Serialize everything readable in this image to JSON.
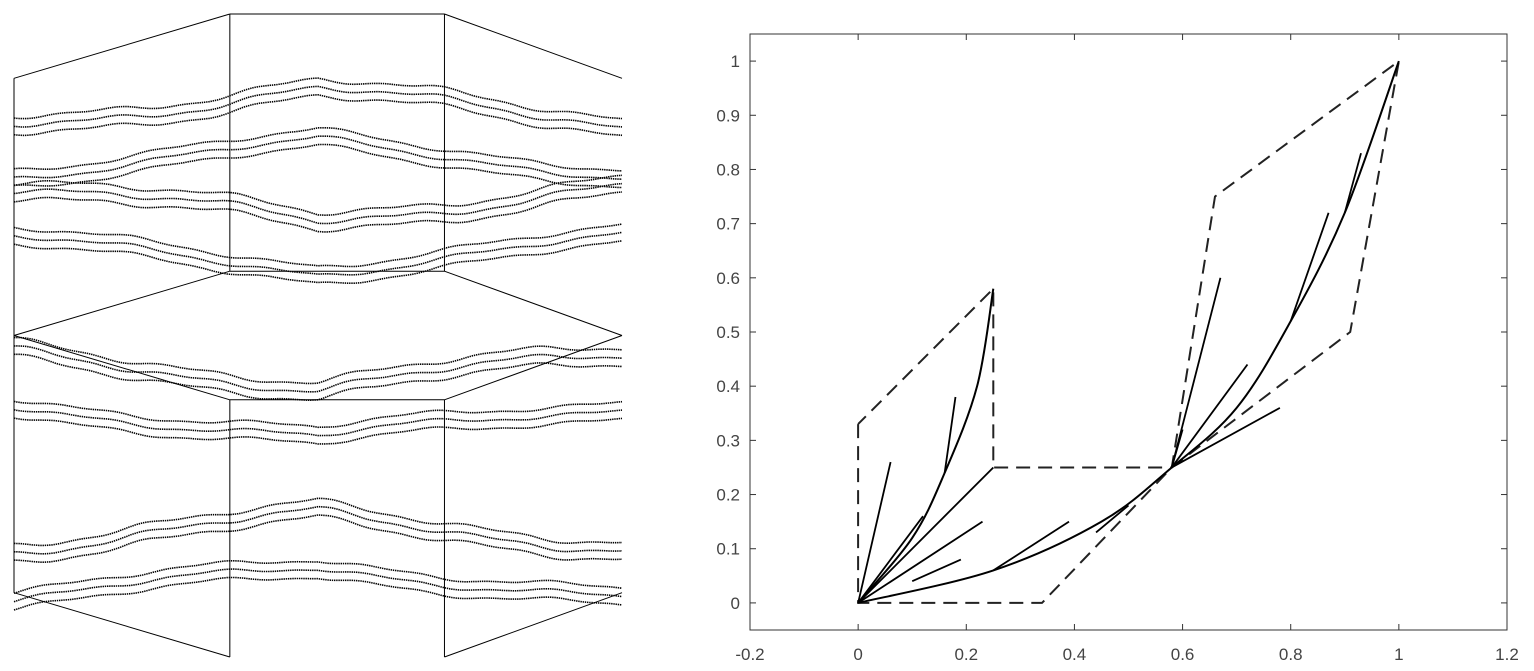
{
  "chart_data": [
    {
      "type": "other",
      "title": "",
      "grid": false,
      "colors": {
        "stroke": "#000000"
      },
      "hexagon_rows": [
        {
          "border": [
            [
              0,
              0.1
            ],
            [
              0.35,
              0
            ],
            [
              0.7,
              0.1
            ],
            [
              1,
              0.1
            ],
            [
              1,
              0.4
            ],
            [
              0,
              0.4
            ]
          ]
        },
        {
          "border": [
            [
              0,
              0.5
            ],
            [
              0.35,
              0.6
            ],
            [
              0.7,
              0.5
            ],
            [
              1,
              0.5
            ],
            [
              1,
              0.9
            ],
            [
              0,
              0.9
            ]
          ]
        }
      ],
      "curve_bands": [
        {
          "base": 0.12,
          "amp": 0.05,
          "sign": 1
        },
        {
          "base": 0.2,
          "amp": 0.04,
          "sign": 1
        },
        {
          "base": 0.32,
          "amp": 0.05,
          "sign": -1
        },
        {
          "base": 0.4,
          "amp": 0.04,
          "sign": -1
        },
        {
          "base": 0.58,
          "amp": 0.05,
          "sign": -1
        },
        {
          "base": 0.66,
          "amp": 0.04,
          "sign": -1
        },
        {
          "base": 0.78,
          "amp": 0.05,
          "sign": 1
        },
        {
          "base": 0.86,
          "amp": 0.04,
          "sign": 1
        }
      ]
    },
    {
      "type": "line",
      "title": "",
      "xlabel": "",
      "ylabel": "",
      "grid": false,
      "xlim": [
        -0.2,
        1.2
      ],
      "ylim": [
        -0.05,
        1.05
      ],
      "xticks": [
        -0.2,
        0,
        0.2,
        0.4,
        0.6,
        0.8,
        1,
        1.2
      ],
      "xtick_labels": [
        "-0.2",
        "0",
        "0.2",
        "0.4",
        "0.6",
        "0.8",
        "1",
        "1.2"
      ],
      "yticks": [
        0,
        0.1,
        0.2,
        0.3,
        0.4,
        0.5,
        0.6,
        0.7,
        0.8,
        0.9,
        1
      ],
      "ytick_labels": [
        "0",
        "0.1",
        "0.2",
        "0.3",
        "0.4",
        "0.5",
        "0.6",
        "0.7",
        "0.8",
        "0.9",
        "1"
      ],
      "dashed_outline": [
        [
          0,
          0.33
        ],
        [
          0,
          0
        ],
        [
          0.34,
          0
        ],
        [
          0.58,
          0.25
        ],
        [
          0.91,
          0.5
        ],
        [
          1,
          1
        ],
        [
          0.66,
          0.75
        ],
        [
          0.58,
          0.25
        ],
        [
          0.25,
          0.25
        ],
        [
          0.25,
          0.58
        ],
        [
          0,
          0.33
        ]
      ],
      "solid_main_curve": [
        [
          0,
          0
        ],
        [
          0.25,
          0.06
        ],
        [
          0.45,
          0.15
        ],
        [
          0.58,
          0.25
        ],
        [
          0.7,
          0.36
        ],
        [
          0.8,
          0.52
        ],
        [
          0.9,
          0.72
        ],
        [
          1,
          1
        ]
      ],
      "solid_branch_curve": [
        [
          0,
          0
        ],
        [
          0.1,
          0.12
        ],
        [
          0.16,
          0.24
        ],
        [
          0.22,
          0.4
        ],
        [
          0.25,
          0.58
        ]
      ],
      "solid_segments": [
        [
          [
            0,
            0
          ],
          [
            0.25,
            0.25
          ]
        ],
        [
          [
            0,
            0
          ],
          [
            0.06,
            0.26
          ]
        ],
        [
          [
            0,
            0
          ],
          [
            0.12,
            0.16
          ]
        ],
        [
          [
            0,
            0
          ],
          [
            0.23,
            0.15
          ]
        ],
        [
          [
            0.1,
            0.04
          ],
          [
            0.19,
            0.08
          ]
        ],
        [
          [
            0.25,
            0.06
          ],
          [
            0.39,
            0.15
          ]
        ],
        [
          [
            0.44,
            0.13
          ],
          [
            0.5,
            0.18
          ]
        ],
        [
          [
            0.16,
            0.24
          ],
          [
            0.18,
            0.38
          ]
        ],
        [
          [
            0.58,
            0.25
          ],
          [
            0.6,
            0.32
          ]
        ],
        [
          [
            0.58,
            0.25
          ],
          [
            0.67,
            0.6
          ]
        ],
        [
          [
            0.58,
            0.25
          ],
          [
            0.72,
            0.44
          ]
        ],
        [
          [
            0.58,
            0.25
          ],
          [
            0.78,
            0.36
          ]
        ],
        [
          [
            0.8,
            0.52
          ],
          [
            0.87,
            0.72
          ]
        ],
        [
          [
            0.9,
            0.72
          ],
          [
            0.93,
            0.83
          ]
        ]
      ]
    }
  ]
}
